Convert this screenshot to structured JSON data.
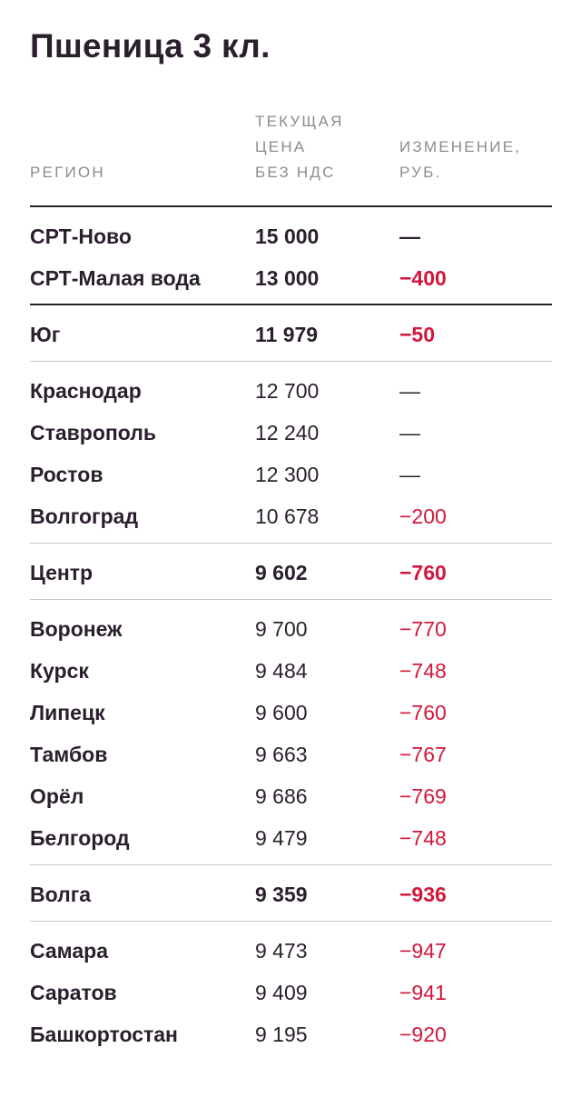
{
  "title": "Пшеница 3 кл.",
  "headers": {
    "region": "РЕГИОН",
    "price_line1": "ТЕКУЩАЯ",
    "price_line2": "ЦЕНА",
    "price_line3": "БЕЗ НДС",
    "change_line1": "ИЗМЕНЕНИЕ,",
    "change_line2": "РУБ."
  },
  "colors": {
    "text": "#2b1f2d",
    "negative": "#d2173c",
    "muted": "#8f8a92"
  },
  "rows": [
    {
      "region": "СРТ-Ново",
      "price": "15 000",
      "change": "—"
    },
    {
      "region": "СРТ-Малая вода",
      "price": "13 000",
      "change": "−400"
    },
    {
      "region": "Юг",
      "price": "11 979",
      "change": "−50"
    },
    {
      "region": "Краснодар",
      "price": "12 700",
      "change": "—"
    },
    {
      "region": "Ставрополь",
      "price": "12 240",
      "change": "—"
    },
    {
      "region": "Ростов",
      "price": "12 300",
      "change": "—"
    },
    {
      "region": "Волгоград",
      "price": "10 678",
      "change": "−200"
    },
    {
      "region": "Центр",
      "price": "9 602",
      "change": "−760"
    },
    {
      "region": "Воронеж",
      "price": "9 700",
      "change": "−770"
    },
    {
      "region": "Курск",
      "price": "9 484",
      "change": "−748"
    },
    {
      "region": "Липецк",
      "price": "9 600",
      "change": "−760"
    },
    {
      "region": "Тамбов",
      "price": "9 663",
      "change": "−767"
    },
    {
      "region": "Орёл",
      "price": "9 686",
      "change": "−769"
    },
    {
      "region": "Белгород",
      "price": "9 479",
      "change": "−748"
    },
    {
      "region": "Волга",
      "price": "9 359",
      "change": "−936"
    },
    {
      "region": "Самара",
      "price": "9 473",
      "change": "−947"
    },
    {
      "region": "Саратов",
      "price": "9 409",
      "change": "−941"
    },
    {
      "region": "Башкортостан",
      "price": "9 195",
      "change": "−920"
    }
  ]
}
